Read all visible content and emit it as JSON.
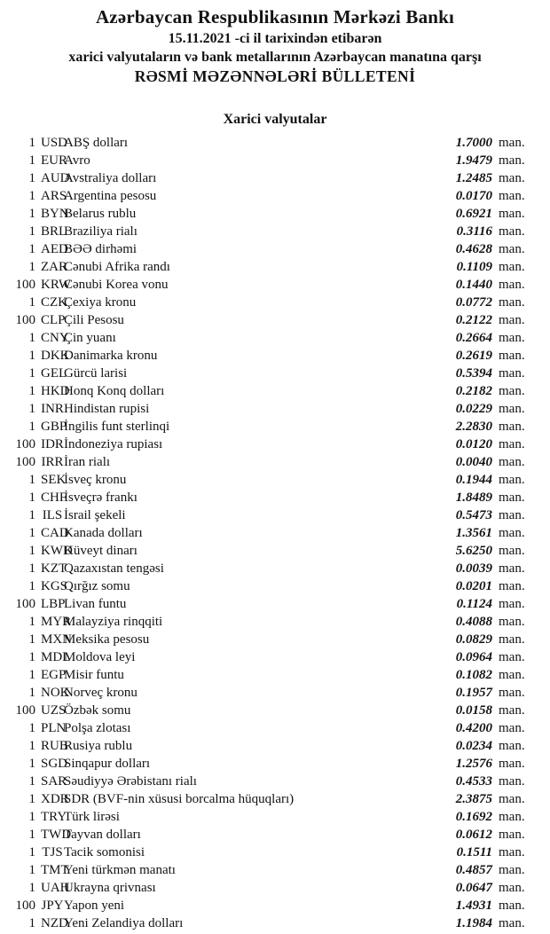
{
  "header": {
    "bank_name": "Azərbaycan Respublikasının Mərkəzi Bankı",
    "date_line": "15.11.2021 -ci il tarixindən etibarən",
    "subtitle": "xarici valyutaların və bank metallarının Azərbaycan manatına qarşı",
    "bulletin_title": "RƏSMİ MƏZƏNNƏLƏRİ BÜLLETENİ"
  },
  "section": {
    "title": "Xarici valyutalar"
  },
  "table": {
    "unit_label": "man.",
    "rows": [
      {
        "qty": "1",
        "code": "USD",
        "name": "ABŞ dolları",
        "rate": "1.7000"
      },
      {
        "qty": "1",
        "code": "EUR",
        "name": "Avro",
        "rate": "1.9479"
      },
      {
        "qty": "1",
        "code": "AUD",
        "name": "Avstraliya dolları",
        "rate": "1.2485"
      },
      {
        "qty": "1",
        "code": "ARS",
        "name": "Argentina pesosu",
        "rate": "0.0170"
      },
      {
        "qty": "1",
        "code": "BYN",
        "name": "Belarus rublu",
        "rate": "0.6921"
      },
      {
        "qty": "1",
        "code": "BRL",
        "name": "Braziliya rialı",
        "rate": "0.3116"
      },
      {
        "qty": "1",
        "code": "AED",
        "name": "BƏƏ dirhəmi",
        "rate": "0.4628"
      },
      {
        "qty": "1",
        "code": "ZAR",
        "name": "Cənubi Afrika randı",
        "rate": "0.1109"
      },
      {
        "qty": "100",
        "code": "KRW",
        "name": "Cənubi Korea vonu",
        "rate": "0.1440"
      },
      {
        "qty": "1",
        "code": "CZK",
        "name": "Çexiya kronu",
        "rate": "0.0772"
      },
      {
        "qty": "100",
        "code": "CLP",
        "name": "Çili Pesosu",
        "rate": "0.2122"
      },
      {
        "qty": "1",
        "code": "CNY",
        "name": "Çin yuanı",
        "rate": "0.2664"
      },
      {
        "qty": "1",
        "code": "DKK",
        "name": "Danimarka kronu",
        "rate": "0.2619"
      },
      {
        "qty": "1",
        "code": "GEL",
        "name": "Gürcü larisi",
        "rate": "0.5394"
      },
      {
        "qty": "1",
        "code": "HKD",
        "name": "Honq Konq dolları",
        "rate": "0.2182"
      },
      {
        "qty": "1",
        "code": "INR",
        "name": "Hindistan rupisi",
        "rate": "0.0229"
      },
      {
        "qty": "1",
        "code": "GBP",
        "name": "İngilis funt sterlinqi",
        "rate": "2.2830"
      },
      {
        "qty": "100",
        "code": "IDR",
        "name": "İndoneziya rupiası",
        "rate": "0.0120"
      },
      {
        "qty": "100",
        "code": "IRR",
        "name": "İran rialı",
        "rate": "0.0040"
      },
      {
        "qty": "1",
        "code": "SEK",
        "name": "İsveç kronu",
        "rate": "0.1944"
      },
      {
        "qty": "1",
        "code": "CHF",
        "name": "İsveçrə frankı",
        "rate": "1.8489"
      },
      {
        "qty": "1",
        "code": "ILS",
        "name": "İsrail şekeli",
        "rate": "0.5473"
      },
      {
        "qty": "1",
        "code": "CAD",
        "name": "Kanada dolları",
        "rate": "1.3561"
      },
      {
        "qty": "1",
        "code": "KWD",
        "name": "Küveyt dinarı",
        "rate": "5.6250"
      },
      {
        "qty": "1",
        "code": "KZT",
        "name": "Qazaxıstan tengəsi",
        "rate": "0.0039"
      },
      {
        "qty": "1",
        "code": "KGS",
        "name": "Qırğız somu",
        "rate": "0.0201"
      },
      {
        "qty": "100",
        "code": "LBP",
        "name": "Livan funtu",
        "rate": "0.1124"
      },
      {
        "qty": "1",
        "code": "MYR",
        "name": "Malayziya rinqqiti",
        "rate": "0.4088"
      },
      {
        "qty": "1",
        "code": "MXN",
        "name": "Meksika pesosu",
        "rate": "0.0829"
      },
      {
        "qty": "1",
        "code": "MDL",
        "name": "Moldova leyi",
        "rate": "0.0964"
      },
      {
        "qty": "1",
        "code": "EGP",
        "name": "Misir funtu",
        "rate": "0.1082"
      },
      {
        "qty": "1",
        "code": "NOK",
        "name": "Norveç kronu",
        "rate": "0.1957"
      },
      {
        "qty": "100",
        "code": "UZS",
        "name": "Özbək somu",
        "rate": "0.0158"
      },
      {
        "qty": "1",
        "code": "PLN",
        "name": "Polşa zlotası",
        "rate": "0.4200"
      },
      {
        "qty": "1",
        "code": "RUB",
        "name": "Rusiya rublu",
        "rate": "0.0234"
      },
      {
        "qty": "1",
        "code": "SGD",
        "name": "Sinqapur dolları",
        "rate": "1.2576"
      },
      {
        "qty": "1",
        "code": "SAR",
        "name": "Səudiyyə Ərəbistanı rialı",
        "rate": "0.4533"
      },
      {
        "qty": "1",
        "code": "XDR",
        "name": "SDR (BVF-nin xüsusi borcalma hüquqları)",
        "rate": "2.3875"
      },
      {
        "qty": "1",
        "code": "TRY",
        "name": "Türk lirəsi",
        "rate": "0.1692"
      },
      {
        "qty": "1",
        "code": "TWD",
        "name": "Tayvan dolları",
        "rate": "0.0612"
      },
      {
        "qty": "1",
        "code": "TJS",
        "name": "Tacik somonisi",
        "rate": "0.1511"
      },
      {
        "qty": "1",
        "code": "TMT",
        "name": "Yeni türkmən manatı",
        "rate": "0.4857"
      },
      {
        "qty": "1",
        "code": "UAH",
        "name": "Ukrayna qrivnası",
        "rate": "0.0647"
      },
      {
        "qty": "100",
        "code": "JPY",
        "name": "Yapon yeni",
        "rate": "1.4931"
      },
      {
        "qty": "1",
        "code": "NZD",
        "name": "Yeni Zelandiya dolları",
        "rate": "1.1984"
      }
    ]
  },
  "colors": {
    "text": "#131313",
    "background": "#ffffff"
  }
}
